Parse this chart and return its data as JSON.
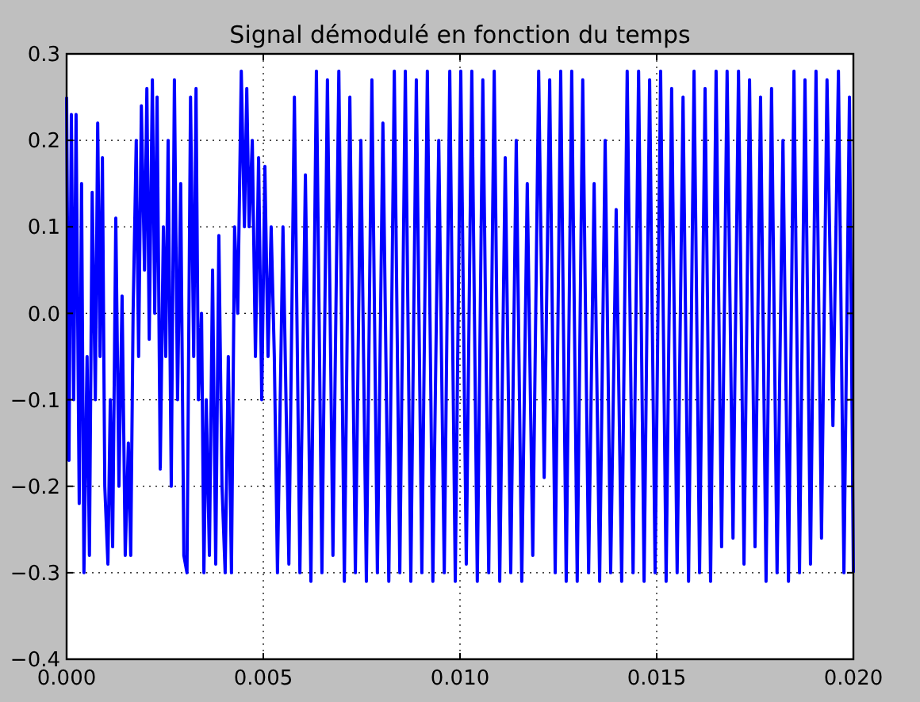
{
  "chart_data": {
    "type": "line",
    "title": "Signal démodulé en fonction du temps",
    "xlim": [
      0,
      0.02
    ],
    "ylim": [
      -0.4,
      0.3
    ],
    "xticks": [
      {
        "value": 0,
        "label": "0.000"
      },
      {
        "value": 0.005,
        "label": "0.005"
      },
      {
        "value": 0.01,
        "label": "0.010"
      },
      {
        "value": 0.015,
        "label": "0.015"
      },
      {
        "value": 0.02,
        "label": "0.020"
      }
    ],
    "yticks": [
      {
        "value": -0.4,
        "label": "−0.4"
      },
      {
        "value": -0.3,
        "label": "−0.3"
      },
      {
        "value": -0.2,
        "label": "−0.2"
      },
      {
        "value": -0.1,
        "label": "−0.1"
      },
      {
        "value": 0,
        "label": "0.0"
      },
      0.1,
      0.2,
      0.3
    ],
    "grid": true,
    "x": [
      0,
      6e-05,
      0.00012,
      0.00018,
      0.00024,
      0.00032,
      0.00038,
      0.00044,
      0.00052,
      0.00058,
      0.00065,
      0.00073,
      0.00079,
      0.00085,
      0.00091,
      0.00097,
      0.00105,
      0.00111,
      0.00117,
      0.00125,
      0.00133,
      0.00141,
      0.00149,
      0.00157,
      0.00163,
      0.00169,
      0.00177,
      0.00183,
      0.0019,
      0.00198,
      0.00204,
      0.0021,
      0.00218,
      0.00224,
      0.0023,
      0.00238,
      0.00246,
      0.00252,
      0.00258,
      0.00266,
      0.00274,
      0.00282,
      0.0029,
      0.00298,
      0.00306,
      0.00315,
      0.00323,
      0.00329,
      0.00335,
      0.00343,
      0.00349,
      0.00355,
      0.00363,
      0.00371,
      0.00379,
      0.00387,
      0.00395,
      0.00403,
      0.00411,
      0.00419,
      0.00427,
      0.00435,
      0.00444,
      0.00452,
      0.00458,
      0.00464,
      0.00472,
      0.0048,
      0.00488,
      0.00496,
      0.00504,
      0.00512,
      0.0052,
      0.00528,
      0.00536,
      0.0055,
      0.00565,
      0.00579,
      0.00593,
      0.00607,
      0.00621,
      0.00635,
      0.00649,
      0.00663,
      0.00677,
      0.00692,
      0.00706,
      0.0072,
      0.00734,
      0.00748,
      0.00762,
      0.00776,
      0.0079,
      0.00804,
      0.00819,
      0.00833,
      0.00847,
      0.00861,
      0.00875,
      0.00889,
      0.00903,
      0.00917,
      0.00931,
      0.00946,
      0.0096,
      0.00974,
      0.00988,
      0.01002,
      0.01016,
      0.0103,
      0.01044,
      0.01058,
      0.01073,
      0.01087,
      0.01101,
      0.01115,
      0.01129,
      0.01143,
      0.01157,
      0.01171,
      0.01185,
      0.012,
      0.01214,
      0.01228,
      0.01242,
      0.01256,
      0.0127,
      0.01284,
      0.01298,
      0.01312,
      0.01327,
      0.01341,
      0.01355,
      0.01369,
      0.01383,
      0.01397,
      0.01411,
      0.01425,
      0.0144,
      0.01454,
      0.01468,
      0.01482,
      0.01496,
      0.0151,
      0.01524,
      0.01538,
      0.01552,
      0.01567,
      0.01581,
      0.01595,
      0.01609,
      0.01623,
      0.01637,
      0.01651,
      0.01665,
      0.01679,
      0.01694,
      0.01708,
      0.01722,
      0.01736,
      0.0175,
      0.01764,
      0.01778,
      0.01792,
      0.01806,
      0.01821,
      0.01835,
      0.01849,
      0.01863,
      0.01877,
      0.01891,
      0.01905,
      0.01919,
      0.01933,
      0.01948,
      0.01962,
      0.01976,
      0.0199,
      0.02
    ],
    "series": [
      {
        "color": "#0000ff",
        "values": [
          0.25,
          -0.17,
          0.23,
          -0.1,
          0.23,
          -0.22,
          0.15,
          -0.3,
          -0.05,
          -0.28,
          0.14,
          -0.1,
          0.22,
          -0.05,
          0.18,
          -0.2,
          -0.29,
          -0.1,
          -0.27,
          0.11,
          -0.2,
          0.02,
          -0.28,
          -0.15,
          -0.28,
          0,
          0.2,
          -0.05,
          0.24,
          0.05,
          0.26,
          -0.03,
          0.27,
          0,
          0.25,
          -0.18,
          0.1,
          -0.05,
          0.2,
          -0.2,
          0.27,
          -0.1,
          0.15,
          -0.28,
          -0.3,
          0.25,
          -0.05,
          0.26,
          -0.1,
          0,
          -0.3,
          -0.1,
          -0.28,
          0.05,
          -0.29,
          0.09,
          -0.2,
          -0.3,
          -0.05,
          -0.3,
          0.1,
          0,
          0.28,
          0.1,
          0.26,
          0.1,
          0.2,
          -0.05,
          0.18,
          -0.1,
          0.17,
          -0.05,
          0.1,
          -0.05,
          -0.3,
          0.1,
          -0.29,
          0.25,
          -0.3,
          0.16,
          -0.31,
          0.28,
          -0.3,
          0.27,
          -0.28,
          0.28,
          -0.31,
          0.25,
          -0.3,
          0.2,
          -0.31,
          0.27,
          -0.3,
          0.22,
          -0.31,
          0.28,
          -0.3,
          0.28,
          -0.31,
          0.27,
          -0.3,
          0.28,
          -0.31,
          0.2,
          -0.3,
          0.28,
          -0.31,
          0.28,
          -0.29,
          0.28,
          -0.31,
          0.27,
          -0.3,
          0.28,
          -0.31,
          0.18,
          -0.3,
          0.2,
          -0.31,
          0.15,
          -0.28,
          0.28,
          -0.19,
          0.27,
          -0.3,
          0.28,
          -0.31,
          0.28,
          -0.31,
          0.27,
          -0.3,
          0.15,
          -0.31,
          0.2,
          -0.3,
          0.12,
          -0.31,
          0.28,
          -0.3,
          0.28,
          -0.31,
          0.27,
          -0.3,
          0.28,
          -0.31,
          0.26,
          -0.3,
          0.25,
          -0.31,
          0.28,
          -0.3,
          0.26,
          -0.31,
          0.28,
          -0.27,
          0.28,
          -0.26,
          0.28,
          -0.29,
          0.27,
          -0.27,
          0.25,
          -0.31,
          0.26,
          -0.3,
          0.2,
          -0.31,
          0.28,
          -0.3,
          0.27,
          -0.29,
          0.28,
          -0.26,
          0.27,
          -0.13,
          0.28,
          -0.3,
          0.25,
          -0.3
        ]
      }
    ]
  }
}
